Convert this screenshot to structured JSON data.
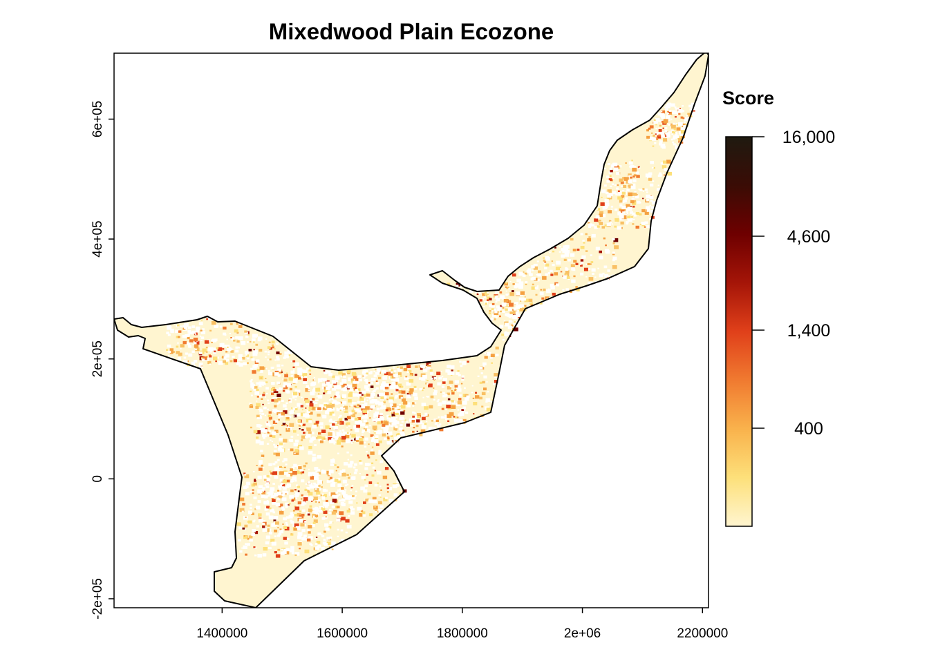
{
  "title": "Mixedwood Plain Ecozone",
  "legend": {
    "title": "Score",
    "labels": [
      "16,000",
      "4,600",
      "1,400",
      "400"
    ],
    "colors": [
      "#fff5d0",
      "#fde07a",
      "#f9b24c",
      "#f07a30",
      "#e0401a",
      "#a51508",
      "#6e0000",
      "#3a0c05",
      "#1f1a10"
    ]
  },
  "chart_data": {
    "type": "heatmap",
    "title": "Mixedwood Plain Ecozone",
    "xlabel": "",
    "ylabel": "",
    "xlim": [
      1220000,
      2210000
    ],
    "ylim": [
      -215000,
      710000
    ],
    "x_ticks": [
      {
        "value": 1400000,
        "label": "1400000"
      },
      {
        "value": 1600000,
        "label": "1600000"
      },
      {
        "value": 1800000,
        "label": "1800000"
      },
      {
        "value": 2000000,
        "label": "2e+06"
      },
      {
        "value": 2200000,
        "label": "2200000"
      }
    ],
    "y_ticks": [
      {
        "value": -200000,
        "label": "-2e+05"
      },
      {
        "value": 0,
        "label": "0"
      },
      {
        "value": 200000,
        "label": "2e+05"
      },
      {
        "value": 400000,
        "label": "4e+05"
      },
      {
        "value": 600000,
        "label": "6e+05"
      }
    ],
    "legend_title": "Score",
    "legend_breaks": [
      400,
      1400,
      4600,
      16000
    ],
    "legend_placement": "right",
    "grid": false,
    "background_fill": "#fff5d0",
    "outline_color": "#000000"
  }
}
